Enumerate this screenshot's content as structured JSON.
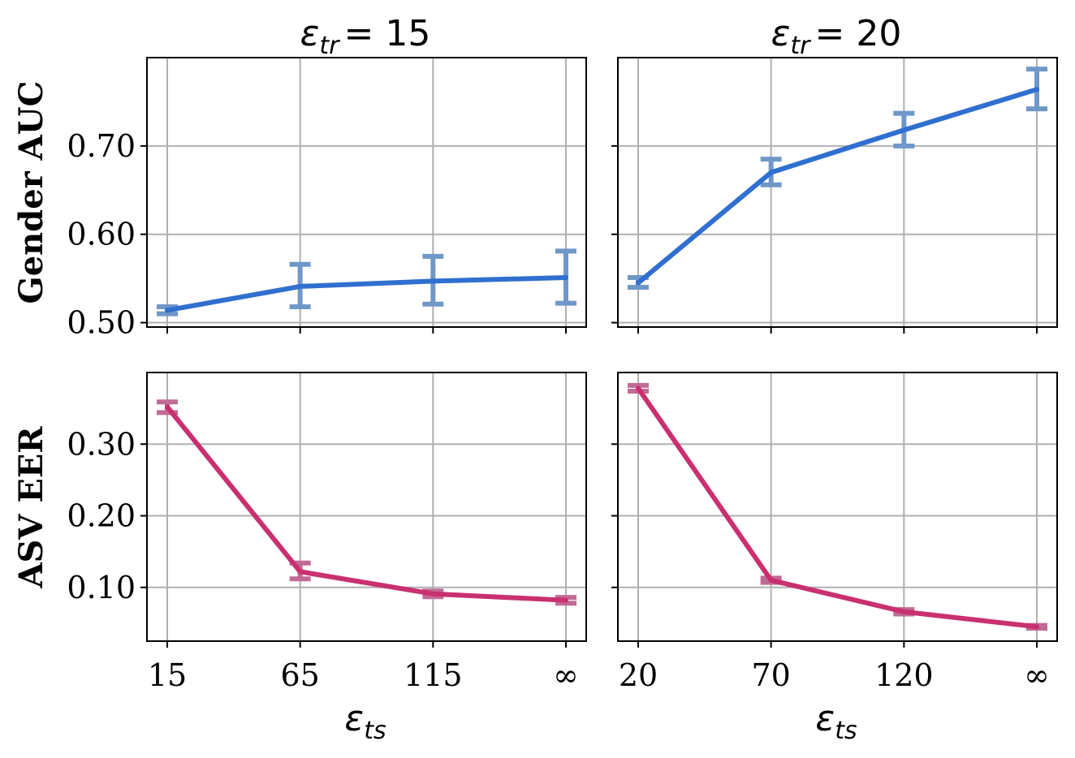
{
  "chart_data": [
    {
      "type": "line",
      "title": "ε_tr = 15",
      "title_parts": {
        "symbol": "ε",
        "sub": "tr",
        "value": "= 15"
      },
      "ylabel": "Gender AUC",
      "xlabel": "",
      "categories": [
        "15",
        "65",
        "115",
        "∞"
      ],
      "series": [
        {
          "values": [
            0.514,
            0.541,
            0.547,
            0.551
          ],
          "error_low": [
            0.51,
            0.518,
            0.521,
            0.522
          ],
          "error_high": [
            0.518,
            0.566,
            0.575,
            0.581
          ]
        }
      ],
      "ylim": [
        0.495,
        0.8
      ],
      "yticks": [
        "0.50",
        "0.60",
        "0.70"
      ],
      "grid": true
    },
    {
      "type": "line",
      "title": "ε_tr = 20",
      "title_parts": {
        "symbol": "ε",
        "sub": "tr",
        "value": "= 20"
      },
      "ylabel": "",
      "xlabel": "",
      "categories": [
        "20",
        "70",
        "120",
        "∞"
      ],
      "series": [
        {
          "values": [
            0.545,
            0.67,
            0.718,
            0.764
          ],
          "error_low": [
            0.54,
            0.656,
            0.7,
            0.742
          ],
          "error_high": [
            0.551,
            0.685,
            0.737,
            0.787
          ]
        }
      ],
      "ylim": [
        0.495,
        0.8
      ],
      "yticks": [
        "0.50",
        "0.60",
        "0.70"
      ],
      "grid": true
    },
    {
      "type": "line",
      "title": "",
      "ylabel": "ASV EER",
      "xlabel": "ε_ts",
      "categories": [
        "15",
        "65",
        "115",
        "∞"
      ],
      "series": [
        {
          "values": [
            0.352,
            0.122,
            0.091,
            0.082
          ],
          "error_low": [
            0.344,
            0.112,
            0.087,
            0.078
          ],
          "error_high": [
            0.359,
            0.134,
            0.095,
            0.086
          ]
        }
      ],
      "ylim": [
        0.025,
        0.4
      ],
      "yticks": [
        "0.10",
        "0.20",
        "0.30"
      ],
      "grid": true
    },
    {
      "type": "line",
      "title": "",
      "ylabel": "",
      "xlabel": "ε_ts",
      "categories": [
        "20",
        "70",
        "120",
        "∞"
      ],
      "series": [
        {
          "values": [
            0.378,
            0.11,
            0.066,
            0.045
          ],
          "error_low": [
            0.374,
            0.107,
            0.063,
            0.043
          ],
          "error_high": [
            0.382,
            0.113,
            0.069,
            0.047
          ]
        }
      ],
      "ylim": [
        0.025,
        0.4
      ],
      "yticks": [
        "0.10",
        "0.20",
        "0.30"
      ],
      "grid": true
    }
  ],
  "colors": {
    "gender_line": "#2f6fd0",
    "gender_error": "#6f97c8",
    "asv_line": "#c9306f",
    "asv_error": "#c06b95",
    "grid": "#b0b0b0",
    "axes": "#000000"
  },
  "xlabel_parts": {
    "symbol": "ε",
    "sub": "ts"
  }
}
